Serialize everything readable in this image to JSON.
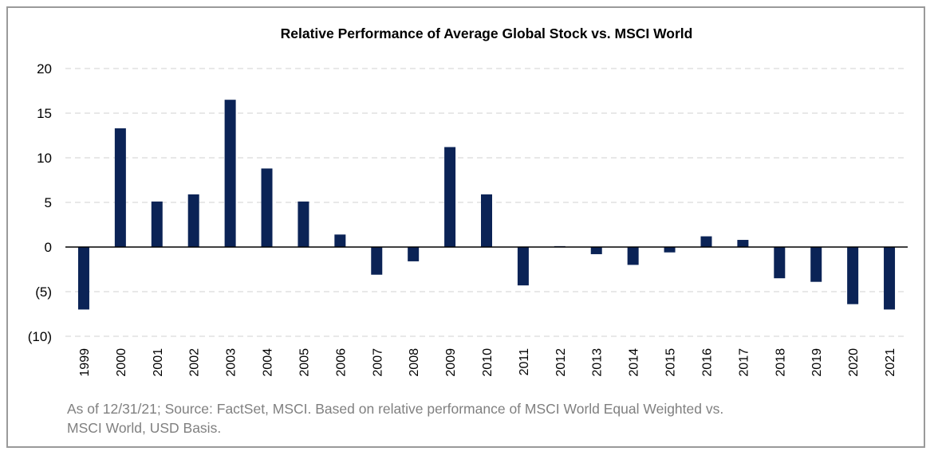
{
  "chart_data": {
    "type": "bar",
    "title": "Relative Performance of Average  Global Stock vs. MSCI World",
    "xlabel": "",
    "ylabel": "",
    "categories": [
      "1999",
      "2000",
      "2001",
      "2002",
      "2003",
      "2004",
      "2005",
      "2006",
      "2007",
      "2008",
      "2009",
      "2010",
      "2011",
      "2012",
      "2013",
      "2014",
      "2015",
      "2016",
      "2017",
      "2018",
      "2019",
      "2020",
      "2021"
    ],
    "values": [
      -7.0,
      13.3,
      5.1,
      5.9,
      16.5,
      8.8,
      5.1,
      1.4,
      -3.1,
      -1.6,
      11.2,
      5.9,
      -4.3,
      0.1,
      -0.8,
      -2.0,
      -0.6,
      1.2,
      0.8,
      -3.5,
      -3.9,
      -6.4,
      -7.0
    ],
    "ylim": [
      -10,
      20
    ],
    "yticks": [
      20,
      15,
      10,
      5,
      0,
      -5,
      -10
    ],
    "ytick_labels": [
      "20",
      "15",
      "10",
      "5",
      "0",
      "(5)",
      "(10)"
    ],
    "grid": true,
    "bar_color": "#0b2356",
    "footnote": [
      "As of 12/31/21; Source: FactSet, MSCI. Based on relative performance of MSCI World Equal Weighted vs.",
      "MSCI World, USD Basis."
    ]
  }
}
